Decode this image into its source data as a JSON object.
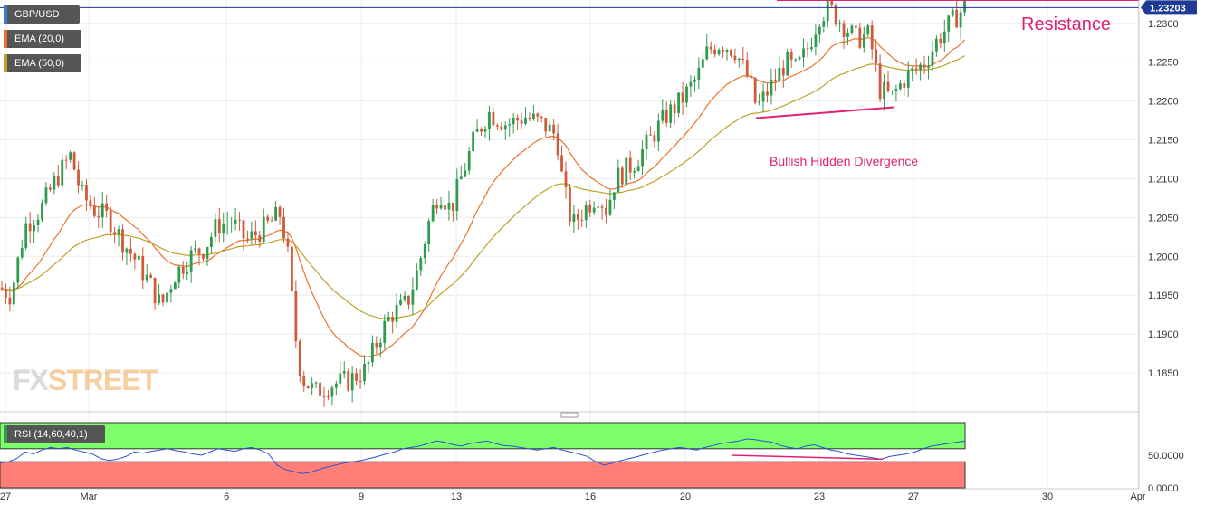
{
  "chart_data": {
    "type": "candlestick",
    "symbol": "GBP/USD",
    "last_price": "1.23203",
    "y_ticks": [
      "1.2300",
      "1.2250",
      "1.2200",
      "1.2150",
      "1.2100",
      "1.2050",
      "1.2000",
      "1.1950",
      "1.1900",
      "1.1850"
    ],
    "ylim": [
      1.18,
      1.233
    ],
    "x_ticks": [
      "27",
      "Mar",
      "6",
      "9",
      "13",
      "16",
      "20",
      "23",
      "27",
      "30",
      "Apr"
    ],
    "indicators": [
      {
        "label": "EMA (20,0)",
        "color": "#e8742c"
      },
      {
        "label": "EMA (50,0)",
        "color": "#bba32a"
      }
    ],
    "rsi": {
      "label": "RSI (14,60,40,1)",
      "ticks": [
        "50.0000",
        "0.0000"
      ],
      "upper": 60,
      "lower": 40,
      "values": [
        38,
        40,
        45,
        55,
        52,
        58,
        62,
        60,
        62,
        58,
        55,
        52,
        45,
        42,
        44,
        48,
        55,
        53,
        56,
        58,
        60,
        57,
        55,
        52,
        50,
        55,
        60,
        58,
        56,
        60,
        62,
        58,
        52,
        35,
        28,
        25,
        22,
        24,
        28,
        32,
        35,
        38,
        40,
        42,
        45,
        48,
        52,
        55,
        60,
        62,
        64,
        68,
        72,
        70,
        66,
        64,
        68,
        70,
        72,
        68,
        65,
        64,
        62,
        60,
        58,
        60,
        62,
        58,
        55,
        52,
        48,
        40,
        35,
        38,
        42,
        45,
        48,
        52,
        55,
        58,
        60,
        62,
        60,
        58,
        62,
        65,
        68,
        70,
        72,
        75,
        74,
        72,
        70,
        65,
        62,
        60,
        64,
        66,
        62,
        58,
        56,
        52,
        50,
        48,
        46,
        44,
        48,
        50,
        52,
        55,
        60,
        64,
        66,
        68,
        70,
        72
      ]
    },
    "annotations": [
      "Resistance",
      "Bullish Hidden Divergence"
    ],
    "resistance_level": 1.233,
    "colors": {
      "up": "#2e9b4e",
      "down": "#d05a3a",
      "ema20": "#e8742c",
      "ema50": "#bba32a",
      "resistance": "#e02270",
      "price_line": "#1f3a93"
    }
  },
  "watermark": {
    "part1": "FX",
    "part2": "STREET"
  }
}
